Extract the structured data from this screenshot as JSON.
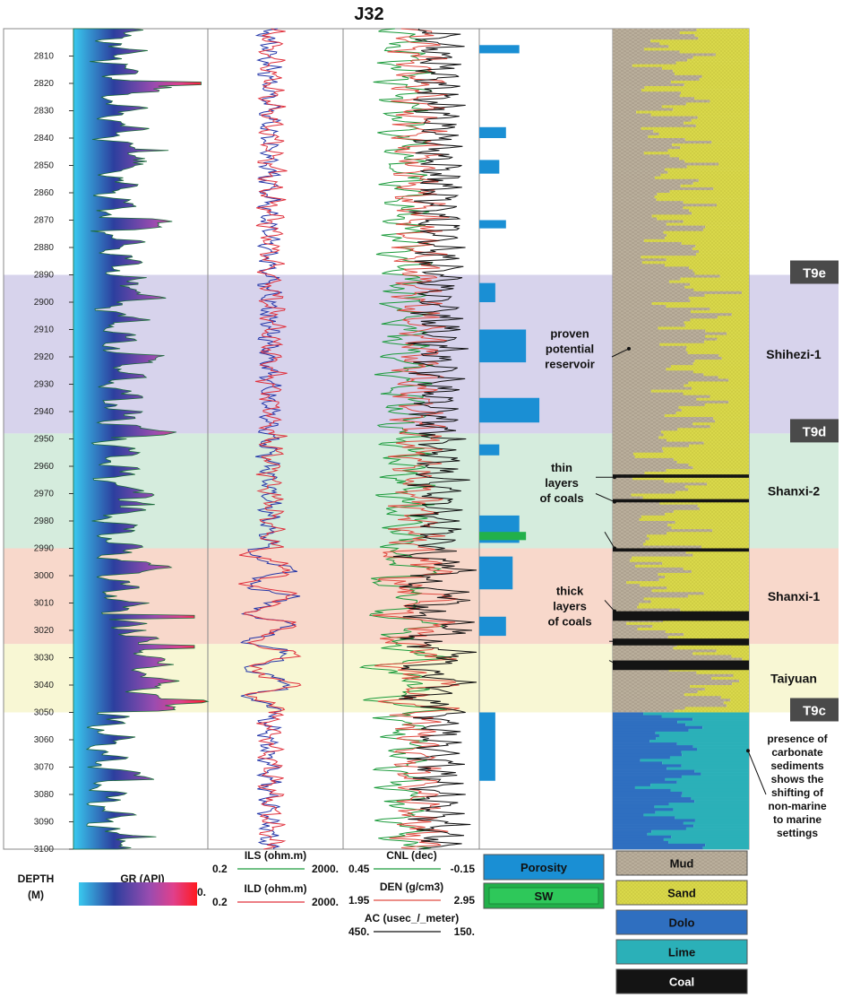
{
  "chart_data": {
    "type": "well-log",
    "title": "J32",
    "depth_range": [
      2800,
      3100
    ],
    "depth_ticks": [
      2810,
      2820,
      2830,
      2840,
      2850,
      2860,
      2870,
      2880,
      2890,
      2900,
      2910,
      2920,
      2930,
      2940,
      2950,
      2960,
      2970,
      2980,
      2990,
      3000,
      3010,
      3020,
      3030,
      3040,
      3050,
      3060,
      3070,
      3080,
      3090,
      3100
    ],
    "zones": [
      {
        "name": "Shihezi-1",
        "top": 2890,
        "base": 2948,
        "color": "#d7d3ec"
      },
      {
        "name": "Shanxi-2",
        "top": 2948,
        "base": 2990,
        "color": "#d5ecdd"
      },
      {
        "name": "Shanxi-1",
        "top": 2990,
        "base": 3025,
        "color": "#f8d8cb"
      },
      {
        "name": "Taiyuan",
        "top": 3025,
        "base": 3050,
        "color": "#f8f7d4"
      }
    ],
    "boundaries": [
      {
        "label": "T9e",
        "depth": 2890
      },
      {
        "label": "T9d",
        "depth": 2948
      },
      {
        "label": "T9c",
        "depth": 3050
      }
    ],
    "coal_layers": [
      {
        "depth": 2963,
        "thickness": 1.2
      },
      {
        "depth": 2972,
        "thickness": 1.2
      },
      {
        "depth": 2990,
        "thickness": 1.2
      },
      {
        "depth": 3013,
        "thickness": 3.5
      },
      {
        "depth": 3023,
        "thickness": 2.5
      },
      {
        "depth": 3031,
        "thickness": 3.5
      }
    ],
    "lithology_intervals": [
      {
        "lith": "Sand",
        "top": 2800,
        "base": 2890,
        "share": 0.55
      },
      {
        "lith": "Sand",
        "top": 2890,
        "base": 2948,
        "share": 0.4
      },
      {
        "lith": "Sand",
        "top": 2948,
        "base": 2990,
        "share": 0.6
      },
      {
        "lith": "Sand",
        "top": 2990,
        "base": 3025,
        "share": 0.65
      },
      {
        "lith": "Mud",
        "top": 3025,
        "base": 3050,
        "share": 0.35
      },
      {
        "lith": "Dolo",
        "top": 3050,
        "base": 3100,
        "share": 0.45
      },
      {
        "lith": "Lime",
        "top": 3050,
        "base": 3100,
        "share": 0.55
      }
    ],
    "tracks": {
      "gr": {
        "label": "GR (API)",
        "min": "0.",
        "max": "250.",
        "scale": [
          0,
          250
        ]
      },
      "ils": {
        "label": "ILS (ohm.m)",
        "min": "0.2",
        "max": "2000.",
        "scale": [
          0.2,
          2000
        ]
      },
      "ild": {
        "label": "ILD (ohm.m)",
        "min": "0.2",
        "max": "2000.",
        "scale": [
          0.2,
          2000
        ]
      },
      "cnl": {
        "label": "CNL (dec)",
        "min": "0.45",
        "max": "-0.15",
        "scale": [
          0.45,
          -0.15
        ]
      },
      "den": {
        "label": "DEN (g/cm3)",
        "min": "1.95",
        "max": "2.95",
        "scale": [
          1.95,
          2.95
        ]
      },
      "ac": {
        "label": "AC (usec_/_meter)",
        "min": "450.",
        "max": "150.",
        "scale": [
          450,
          150
        ]
      }
    },
    "legend": {
      "depth_label_1": "DEPTH",
      "depth_label_2": "(M)",
      "porosity": "Porosity",
      "sw": "SW",
      "litho": [
        "Mud",
        "Sand",
        "Dolo",
        "Lime",
        "Coal"
      ]
    },
    "annotations": {
      "reservoir": [
        "proven",
        "potential",
        "reservoir"
      ],
      "thin_coals": [
        "thin",
        "layers",
        "of coals"
      ],
      "thick_coals": [
        "thick",
        "layers",
        "of coals"
      ],
      "carbonate": [
        "presence of",
        "carbonate",
        "sediments",
        "shows the",
        "shifting of",
        "non-marine",
        "to marine",
        "settings"
      ]
    }
  },
  "colors": {
    "mud": "#b8ad9a",
    "sand": "#d9d94a",
    "dolo": "#2f6fc0",
    "lime": "#2bb0b8",
    "coal": "#141414",
    "porosity": "#1a8fd4",
    "sw": "#22b04a",
    "ils": "#2436a8",
    "ild": "#e0303c",
    "cnl": "#1a9a3a",
    "den": "#e04a40",
    "ac": "#111111",
    "label_box": "#4a4a4a"
  }
}
